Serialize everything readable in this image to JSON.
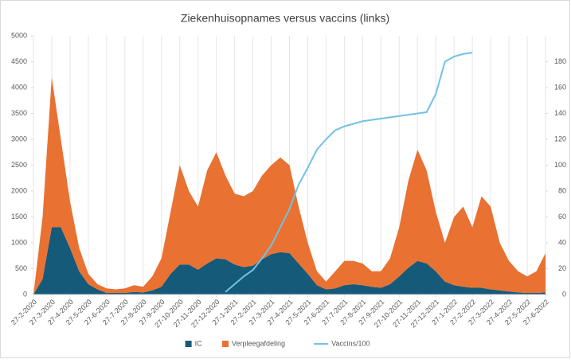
{
  "chart_data": {
    "type": "area",
    "title": "Ziekenhuisopnames versus vaccins (links)",
    "categories": [
      "27-2-2020",
      null,
      "27-3-2020",
      null,
      "27-4-2020",
      null,
      "27-5-2020",
      null,
      "27-6-2020",
      null,
      "27-7-2020",
      null,
      "27-8-2020",
      null,
      "27-9-2020",
      null,
      "27-10-2020",
      null,
      "27-11-2020",
      null,
      "27-12-2020",
      null,
      "27-1-2021",
      null,
      "27-2-2021",
      null,
      "27-3-2021",
      null,
      "27-4-2021",
      null,
      "27-5-2021",
      null,
      "27-6-2021",
      null,
      "27-7-2021",
      null,
      "27-8-2021",
      null,
      "27-9-2021",
      null,
      "27-10-2021",
      null,
      "27-11-2021",
      null,
      "27-12-2021",
      null,
      "27-1-2022",
      null,
      "27-2-2022",
      null,
      "27-3-2022",
      null,
      "27-4-2022",
      null,
      "27-5-2022",
      null,
      "27-6-2022"
    ],
    "series": [
      {
        "name": "IC",
        "color": "#165a7a",
        "stack": true,
        "values": [
          0,
          300,
          1300,
          1300,
          900,
          450,
          200,
          100,
          30,
          30,
          30,
          50,
          40,
          80,
          150,
          400,
          580,
          580,
          480,
          600,
          700,
          680,
          580,
          530,
          560,
          680,
          780,
          820,
          800,
          600,
          400,
          180,
          100,
          120,
          180,
          200,
          180,
          150,
          130,
          200,
          350,
          520,
          650,
          600,
          450,
          250,
          180,
          150,
          130,
          130,
          100,
          80,
          60,
          40,
          30,
          30,
          40
        ]
      },
      {
        "name": "Verpleegafdeling",
        "color": "#e97132",
        "stack": true,
        "values": [
          0,
          1200,
          2900,
          1700,
          900,
          450,
          200,
          100,
          90,
          70,
          90,
          130,
          110,
          270,
          550,
          1200,
          1920,
          1420,
          1220,
          1800,
          2050,
          1620,
          1370,
          1370,
          1440,
          1620,
          1720,
          1830,
          1700,
          1100,
          600,
          270,
          150,
          330,
          470,
          450,
          420,
          300,
          320,
          500,
          950,
          1680,
          2150,
          1800,
          1150,
          750,
          1320,
          1550,
          1170,
          1770,
          1600,
          920,
          590,
          410,
          320,
          420,
          760
        ]
      },
      {
        "name": "Vaccins/100",
        "color": "#71c1e6",
        "axis": "y2",
        "values": [
          null,
          null,
          null,
          null,
          null,
          null,
          null,
          null,
          null,
          null,
          null,
          null,
          null,
          null,
          null,
          null,
          null,
          null,
          null,
          null,
          null,
          2,
          8,
          14,
          19,
          28,
          38,
          52,
          66,
          85,
          98,
          112,
          120,
          127,
          130,
          132,
          134,
          135,
          136,
          137,
          138,
          139,
          140,
          141,
          155,
          180,
          184,
          186,
          187,
          null,
          null,
          null,
          null,
          null,
          null,
          null,
          null
        ]
      }
    ],
    "ylim": [
      0,
      5000
    ],
    "yticks": [
      0,
      500,
      1000,
      1500,
      2000,
      2500,
      3000,
      3500,
      4000,
      4500,
      5000
    ],
    "y2lim": [
      0,
      200
    ],
    "y2ticks": [
      0,
      20,
      40,
      60,
      80,
      100,
      120,
      140,
      160,
      180
    ],
    "xgrid": true,
    "legend": "bottom"
  }
}
